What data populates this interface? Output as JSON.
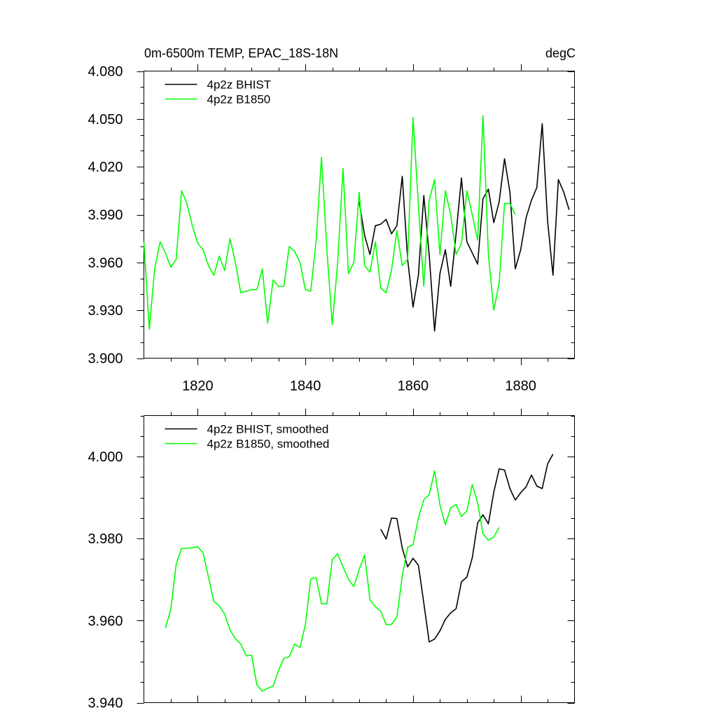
{
  "chart_data": [
    {
      "type": "line",
      "title_left": "0m-6500m TEMP, EPAC_18S-18N",
      "title_right": "degC",
      "xlim": [
        1810,
        1890
      ],
      "ylim": [
        3.9,
        4.08
      ],
      "yticks": [
        "3.900",
        "3.930",
        "3.960",
        "3.990",
        "4.020",
        "4.050",
        "4.080"
      ],
      "xticks": [
        "1820",
        "1840",
        "1860",
        "1880"
      ],
      "legend_position": "top-left",
      "series": [
        {
          "name": "4p2z BHIST",
          "color": "#000000",
          "x": [
            1850,
            1851,
            1852,
            1853,
            1854,
            1855,
            1856,
            1857,
            1858,
            1859,
            1860,
            1861,
            1862,
            1863,
            1864,
            1865,
            1866,
            1867,
            1868,
            1869,
            1870,
            1871,
            1872,
            1873,
            1874,
            1875,
            1876,
            1877,
            1878,
            1879,
            1880,
            1881,
            1882,
            1883,
            1884,
            1885,
            1886,
            1887,
            1888,
            1889
          ],
          "y": [
            3.998,
            3.977,
            3.965,
            3.983,
            3.984,
            3.987,
            3.978,
            3.983,
            4.014,
            3.962,
            3.932,
            3.952,
            4.002,
            3.965,
            3.917,
            3.953,
            3.968,
            3.945,
            3.978,
            4.013,
            3.973,
            3.966,
            3.959,
            4.0,
            4.006,
            3.985,
            3.998,
            4.025,
            4.004,
            3.956,
            3.968,
            3.988,
            3.999,
            4.007,
            4.047,
            3.986,
            3.952,
            4.012,
            4.004,
            3.993
          ]
        },
        {
          "name": "4p2z B1850",
          "color": "#00ff00",
          "x": [
            1810,
            1811,
            1812,
            1813,
            1814,
            1815,
            1816,
            1817,
            1818,
            1819,
            1820,
            1821,
            1822,
            1823,
            1824,
            1825,
            1826,
            1827,
            1828,
            1829,
            1830,
            1831,
            1832,
            1833,
            1834,
            1835,
            1836,
            1837,
            1838,
            1839,
            1840,
            1841,
            1842,
            1843,
            1844,
            1845,
            1846,
            1847,
            1848,
            1849,
            1850,
            1851,
            1852,
            1853,
            1854,
            1855,
            1856,
            1857,
            1858,
            1859,
            1860,
            1861,
            1862,
            1863,
            1864,
            1865,
            1866,
            1867,
            1868,
            1869,
            1870,
            1871,
            1872,
            1873,
            1874,
            1875,
            1876,
            1877,
            1878,
            1879
          ],
          "y": [
            3.973,
            3.918,
            3.956,
            3.973,
            3.966,
            3.957,
            3.962,
            4.005,
            3.997,
            3.983,
            3.972,
            3.968,
            3.958,
            3.952,
            3.964,
            3.955,
            3.975,
            3.96,
            3.941,
            3.942,
            3.943,
            3.943,
            3.956,
            3.922,
            3.949,
            3.945,
            3.945,
            3.97,
            3.967,
            3.96,
            3.943,
            3.942,
            3.974,
            4.026,
            3.968,
            3.921,
            3.96,
            4.019,
            3.953,
            3.96,
            4.004,
            3.958,
            3.954,
            3.973,
            3.944,
            3.941,
            3.955,
            3.98,
            3.958,
            3.962,
            4.051,
            3.996,
            3.945,
            3.999,
            4.012,
            3.965,
            4.005,
            3.99,
            3.965,
            3.972,
            4.005,
            3.99,
            3.974,
            4.052,
            3.965,
            3.93,
            3.947,
            3.997,
            3.997,
            3.99
          ]
        }
      ]
    },
    {
      "type": "line",
      "xlim": [
        1810,
        1890
      ],
      "ylim": [
        3.94,
        4.01
      ],
      "yticks": [
        "3.940",
        "3.960",
        "3.980",
        "4.000"
      ],
      "legend_position": "top-left",
      "series": [
        {
          "name": "4p2z BHIST, smoothed",
          "color": "#000000",
          "x": [
            1854,
            1855,
            1856,
            1857,
            1858,
            1859,
            1860,
            1861,
            1862,
            1863,
            1864,
            1865,
            1866,
            1867,
            1868,
            1869,
            1870,
            1871,
            1872,
            1873,
            1874,
            1875,
            1876,
            1877,
            1878,
            1879,
            1880,
            1881,
            1882,
            1883,
            1884,
            1885,
            1886
          ],
          "y": [
            3.9823,
            3.9799,
            3.985,
            3.9849,
            3.9777,
            3.9731,
            3.9752,
            3.9735,
            3.9643,
            3.9548,
            3.9555,
            3.9575,
            3.9603,
            3.9619,
            3.9629,
            3.9695,
            3.9706,
            3.9753,
            3.9838,
            3.9858,
            3.9836,
            3.9913,
            3.997,
            3.9967,
            3.9922,
            3.9894,
            3.9912,
            3.9926,
            3.9955,
            3.9928,
            3.9922,
            3.9982,
            4.0006
          ]
        },
        {
          "name": "4p2z B1850, smoothed",
          "color": "#00ff00",
          "x": [
            1814,
            1815,
            1816,
            1817,
            1818,
            1819,
            1820,
            1821,
            1822,
            1823,
            1824,
            1825,
            1826,
            1827,
            1828,
            1829,
            1830,
            1831,
            1832,
            1833,
            1834,
            1835,
            1836,
            1837,
            1838,
            1839,
            1840,
            1841,
            1842,
            1843,
            1844,
            1845,
            1846,
            1847,
            1848,
            1849,
            1850,
            1851,
            1852,
            1853,
            1854,
            1855,
            1856,
            1857,
            1858,
            1859,
            1860,
            1861,
            1862,
            1863,
            1864,
            1865,
            1866,
            1867,
            1868,
            1869,
            1870,
            1871,
            1872,
            1873,
            1874,
            1875,
            1876
          ],
          "y": [
            3.9582,
            3.9627,
            3.9738,
            3.9776,
            3.9776,
            3.9778,
            3.978,
            3.9765,
            3.9706,
            3.9647,
            3.9636,
            3.9616,
            3.9577,
            3.9556,
            3.9543,
            3.9514,
            3.9516,
            3.9443,
            3.9428,
            3.9435,
            3.944,
            3.9478,
            3.9508,
            3.9512,
            3.9543,
            3.9534,
            3.959,
            3.9702,
            3.9705,
            3.9641,
            3.9641,
            3.9749,
            3.9763,
            3.9731,
            3.9701,
            3.9683,
            3.9725,
            3.976,
            3.9651,
            3.9634,
            3.9623,
            3.959,
            3.9591,
            3.9608,
            3.9708,
            3.9779,
            3.9785,
            3.9851,
            3.9895,
            3.9907,
            3.9965,
            3.9882,
            3.9834,
            3.9875,
            3.9883,
            3.9854,
            3.9867,
            3.9932,
            3.9888,
            3.9811,
            3.9796,
            3.9804,
            3.9827
          ]
        }
      ]
    }
  ]
}
